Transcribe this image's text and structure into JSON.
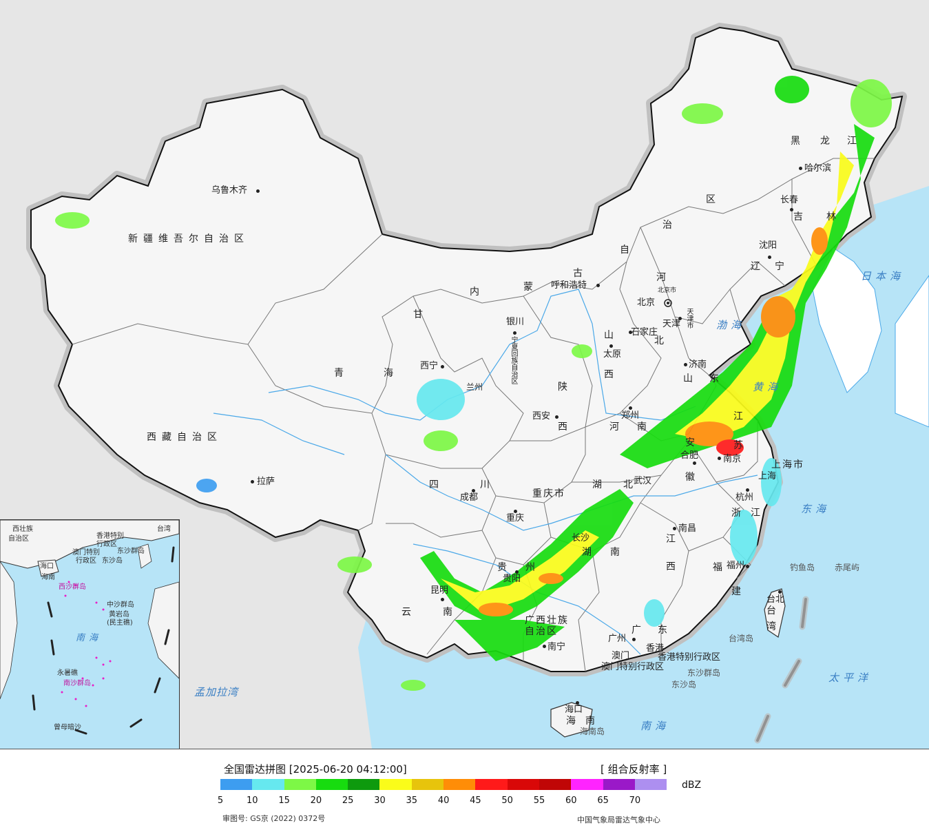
{
  "legend": {
    "title": "全国雷达拼图 [2025-06-20 04:12:00]",
    "product": "[ 组合反射率 ]",
    "unit": "dBZ",
    "approval": "审图号: GS京 (2022) 0372号",
    "source": "中国气象局雷达气象中心",
    "scale_colors": [
      "#3d9df0",
      "#66e8ef",
      "#7df846",
      "#17dc0f",
      "#0e9a0e",
      "#fafc1a",
      "#e7c40c",
      "#ff8d07",
      "#ff1a1a",
      "#d90808",
      "#c00606",
      "#ff24ff",
      "#9a19c8",
      "#ad8ff0"
    ],
    "scale_ticks": [
      "5",
      "10",
      "15",
      "20",
      "25",
      "30",
      "35",
      "40",
      "45",
      "50",
      "55",
      "60",
      "65",
      "70"
    ]
  },
  "map": {
    "provinces": {
      "xinjiang": "新疆维吾尔自治区",
      "xizang": "西藏自治区",
      "qinghai_a": "青",
      "qinghai_b": "海",
      "gansu": "甘",
      "neimenggu_1": "内",
      "neimenggu_2": "蒙",
      "neimenggu_3": "古",
      "neimenggu_4": "自",
      "neimenggu_5": "治",
      "neimenggu_6": "区",
      "heilongjiang_1": "黑",
      "heilongjiang_2": "龙",
      "heilongjiang_3": "江",
      "jilin_1": "吉",
      "jilin_2": "林",
      "liaoning_1": "辽",
      "liaoning_2": "宁",
      "hebei_1": "河",
      "hebei_2": "北",
      "shanxi_1": "山",
      "shanxi_2": "西",
      "shaanxi_1": "陕",
      "shaanxi_2": "西",
      "henan_1": "河",
      "henan_2": "南",
      "shandong_1": "山",
      "shandong_2": "东",
      "jiangsu_1": "江",
      "jiangsu_2": "苏",
      "anhui_1": "安",
      "anhui_2": "徽",
      "hubei_1": "湖",
      "hubei_2": "北",
      "hunan_1": "湖",
      "hunan_2": "南",
      "jiangxi_1": "江",
      "jiangxi_2": "西",
      "zhejiang_1": "浙",
      "zhejiang_2": "江",
      "fujian_1": "福",
      "fujian_2": "建",
      "guangdong_1": "广",
      "guangdong_2": "东",
      "guangxi_a": "广西壮族",
      "guangxi_b": "自治区",
      "guizhou_1": "贵",
      "guizhou_2": "州",
      "yunnan_1": "云",
      "yunnan_2": "南",
      "sichuan_1": "四",
      "sichuan_2": "川",
      "chongqing": "重庆市",
      "hainan_1": "海",
      "hainan_2": "南",
      "taiwan_1": "台",
      "taiwan_2": "湾",
      "shanghai": "上海市",
      "gansu_ningxia": "宁夏回族自治区",
      "lanzhou_city": "兰州",
      "tianjin_city": "天津市"
    },
    "cities": {
      "urumqi": "乌鲁木齐",
      "lhasa": "拉萨",
      "xining": "西宁",
      "lanzhou": "兰州",
      "yinchuan": "银川",
      "hohhot": "呼和浩特",
      "beijing": "北京",
      "beijing_small": "北京市",
      "tianjin": "天津",
      "shijiazhuang": "石家庄",
      "taiyuan": "太原",
      "jinan": "济南",
      "zhengzhou": "郑州",
      "xian": "西安",
      "chengdu": "成都",
      "chongqing": "重庆",
      "guiyang": "贵阳",
      "kunming": "昆明",
      "nanning": "南宁",
      "guangzhou": "广州",
      "hongkong": "香港",
      "macau": "澳门",
      "haikou": "海口",
      "changsha": "长沙",
      "wuhan": "武汉",
      "nanchang": "南昌",
      "fuzhou": "福州",
      "taipei": "台北",
      "hangzhou": "杭州",
      "shanghai": "上海",
      "nanjing": "南京",
      "hefei": "合肥",
      "shenyang": "沈阳",
      "changchun": "长春",
      "harbin": "哈尔滨"
    },
    "special": {
      "hk_region": "香港特别行政区",
      "macau_region": "澳门特别行政区",
      "dongsha": "东沙群岛",
      "dongsha_island": "东沙岛",
      "hainan_island": "海南岛",
      "taiwan_island": "台湾岛",
      "diaoyu": "钓鱼岛",
      "chiwei": "赤尾屿"
    },
    "seas": {
      "bohai": "渤海",
      "yellow_sea": "黄海",
      "east_sea": "东海",
      "south_sea": "南海",
      "japan_sea": "日本海",
      "pacific": "太平洋",
      "bengal": "孟加拉湾"
    },
    "inset": {
      "south_sea": "南海",
      "labels": [
        "西壮族",
        "自治区",
        "海口",
        "香港特别",
        "行政区",
        "澳门特别",
        "行政区",
        "东沙群岛",
        "海南",
        "东沙岛",
        "西沙群岛",
        "中沙群岛",
        "黄岩岛",
        "(民主礁)",
        "永暑礁",
        "南沙群岛",
        "曾母暗沙",
        "台湾"
      ]
    }
  }
}
